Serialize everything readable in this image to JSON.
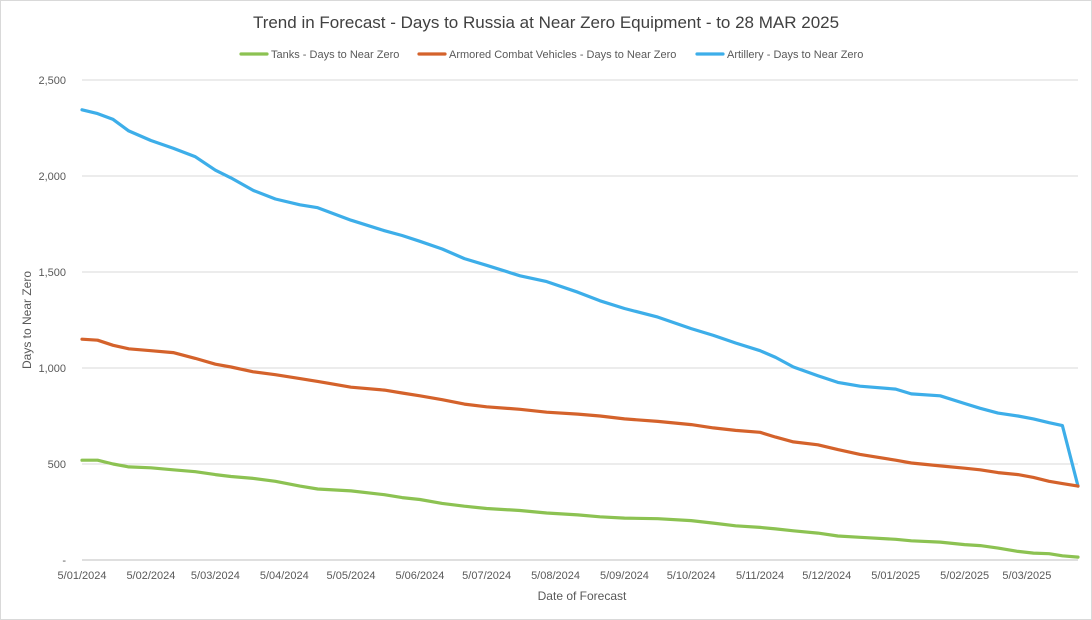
{
  "chart_data": {
    "type": "line",
    "title": "Trend in Forecast - Days to Russia at Near Zero Equipment - to 28 MAR 2025",
    "xlabel": "Date of Forecast",
    "ylabel": "Days to Near Zero",
    "ylim": [
      0,
      2500
    ],
    "yticks": [
      0,
      500,
      1000,
      1500,
      2000,
      2500
    ],
    "ytick_labels": [
      "-",
      "500",
      "1,000",
      "1,500",
      "2,000",
      "2,500"
    ],
    "xlim": [
      "2024-01-05",
      "2025-03-28"
    ],
    "xtick_labels": [
      "5/01/2024",
      "5/02/2024",
      "5/03/2024",
      "5/04/2024",
      "5/05/2024",
      "5/06/2024",
      "5/07/2024",
      "5/08/2024",
      "5/09/2024",
      "5/10/2024",
      "5/11/2024",
      "5/12/2024",
      "5/01/2025",
      "5/02/2025",
      "5/03/2025"
    ],
    "xtick_dates": [
      "2024-01-05",
      "2024-02-05",
      "2024-03-05",
      "2024-04-05",
      "2024-05-05",
      "2024-06-05",
      "2024-07-05",
      "2024-08-05",
      "2024-09-05",
      "2024-10-05",
      "2024-11-05",
      "2024-12-05",
      "2025-01-05",
      "2025-02-05",
      "2025-03-05"
    ],
    "grid": true,
    "legend_position": "top",
    "series": [
      {
        "name": "Tanks - Days to Near Zero",
        "color": "#8cc252",
        "points": [
          [
            "2024-01-05",
            520
          ],
          [
            "2024-01-12",
            520
          ],
          [
            "2024-01-19",
            500
          ],
          [
            "2024-01-26",
            485
          ],
          [
            "2024-02-05",
            480
          ],
          [
            "2024-02-15",
            470
          ],
          [
            "2024-02-25",
            460
          ],
          [
            "2024-03-05",
            445
          ],
          [
            "2024-03-12",
            435
          ],
          [
            "2024-03-22",
            425
          ],
          [
            "2024-04-01",
            410
          ],
          [
            "2024-04-12",
            385
          ],
          [
            "2024-04-20",
            370
          ],
          [
            "2024-05-05",
            360
          ],
          [
            "2024-05-20",
            340
          ],
          [
            "2024-05-28",
            325
          ],
          [
            "2024-06-05",
            315
          ],
          [
            "2024-06-15",
            295
          ],
          [
            "2024-06-25",
            280
          ],
          [
            "2024-07-05",
            268
          ],
          [
            "2024-07-20",
            258
          ],
          [
            "2024-08-01",
            245
          ],
          [
            "2024-08-15",
            235
          ],
          [
            "2024-08-25",
            225
          ],
          [
            "2024-09-05",
            218
          ],
          [
            "2024-09-20",
            215
          ],
          [
            "2024-10-05",
            205
          ],
          [
            "2024-10-15",
            192
          ],
          [
            "2024-10-25",
            178
          ],
          [
            "2024-11-05",
            170
          ],
          [
            "2024-11-12",
            162
          ],
          [
            "2024-11-20",
            152
          ],
          [
            "2024-12-01",
            140
          ],
          [
            "2024-12-10",
            125
          ],
          [
            "2024-12-20",
            118
          ],
          [
            "2025-01-05",
            108
          ],
          [
            "2025-01-12",
            100
          ],
          [
            "2025-01-25",
            93
          ],
          [
            "2025-02-05",
            80
          ],
          [
            "2025-02-12",
            75
          ],
          [
            "2025-02-20",
            62
          ],
          [
            "2025-03-01",
            45
          ],
          [
            "2025-03-08",
            36
          ],
          [
            "2025-03-15",
            33
          ],
          [
            "2025-03-21",
            22
          ],
          [
            "2025-03-28",
            15
          ]
        ]
      },
      {
        "name": "Armored Combat Vehicles - Days to Near Zero",
        "color": "#d4622b",
        "points": [
          [
            "2024-01-05",
            1150
          ],
          [
            "2024-01-12",
            1145
          ],
          [
            "2024-01-19",
            1118
          ],
          [
            "2024-01-26",
            1100
          ],
          [
            "2024-02-05",
            1090
          ],
          [
            "2024-02-15",
            1080
          ],
          [
            "2024-02-25",
            1050
          ],
          [
            "2024-03-05",
            1020
          ],
          [
            "2024-03-12",
            1005
          ],
          [
            "2024-03-22",
            980
          ],
          [
            "2024-04-01",
            965
          ],
          [
            "2024-04-12",
            945
          ],
          [
            "2024-04-20",
            930
          ],
          [
            "2024-05-05",
            900
          ],
          [
            "2024-05-20",
            885
          ],
          [
            "2024-05-28",
            870
          ],
          [
            "2024-06-05",
            855
          ],
          [
            "2024-06-15",
            835
          ],
          [
            "2024-06-25",
            812
          ],
          [
            "2024-07-05",
            798
          ],
          [
            "2024-07-20",
            785
          ],
          [
            "2024-08-01",
            770
          ],
          [
            "2024-08-15",
            760
          ],
          [
            "2024-08-25",
            750
          ],
          [
            "2024-09-05",
            735
          ],
          [
            "2024-09-20",
            722
          ],
          [
            "2024-10-05",
            705
          ],
          [
            "2024-10-15",
            688
          ],
          [
            "2024-10-25",
            675
          ],
          [
            "2024-11-05",
            665
          ],
          [
            "2024-11-12",
            640
          ],
          [
            "2024-11-20",
            615
          ],
          [
            "2024-12-01",
            600
          ],
          [
            "2024-12-10",
            575
          ],
          [
            "2024-12-20",
            550
          ],
          [
            "2025-01-05",
            520
          ],
          [
            "2025-01-12",
            505
          ],
          [
            "2025-01-25",
            490
          ],
          [
            "2025-02-05",
            478
          ],
          [
            "2025-02-12",
            470
          ],
          [
            "2025-02-20",
            455
          ],
          [
            "2025-03-01",
            445
          ],
          [
            "2025-03-08",
            430
          ],
          [
            "2025-03-15",
            410
          ],
          [
            "2025-03-21",
            398
          ],
          [
            "2025-03-28",
            385
          ]
        ]
      },
      {
        "name": "Artillery - Days to Near Zero",
        "color": "#3daee9",
        "points": [
          [
            "2024-01-05",
            2345
          ],
          [
            "2024-01-12",
            2325
          ],
          [
            "2024-01-19",
            2295
          ],
          [
            "2024-01-26",
            2235
          ],
          [
            "2024-02-05",
            2185
          ],
          [
            "2024-02-15",
            2145
          ],
          [
            "2024-02-25",
            2100
          ],
          [
            "2024-03-05",
            2030
          ],
          [
            "2024-03-12",
            1990
          ],
          [
            "2024-03-22",
            1925
          ],
          [
            "2024-04-01",
            1880
          ],
          [
            "2024-04-12",
            1850
          ],
          [
            "2024-04-20",
            1835
          ],
          [
            "2024-05-05",
            1770
          ],
          [
            "2024-05-20",
            1715
          ],
          [
            "2024-05-28",
            1690
          ],
          [
            "2024-06-05",
            1660
          ],
          [
            "2024-06-15",
            1620
          ],
          [
            "2024-06-25",
            1570
          ],
          [
            "2024-07-05",
            1535
          ],
          [
            "2024-07-20",
            1480
          ],
          [
            "2024-08-01",
            1450
          ],
          [
            "2024-08-15",
            1395
          ],
          [
            "2024-08-25",
            1350
          ],
          [
            "2024-09-05",
            1310
          ],
          [
            "2024-09-20",
            1265
          ],
          [
            "2024-10-05",
            1205
          ],
          [
            "2024-10-15",
            1170
          ],
          [
            "2024-10-25",
            1130
          ],
          [
            "2024-11-05",
            1090
          ],
          [
            "2024-11-12",
            1055
          ],
          [
            "2024-11-20",
            1005
          ],
          [
            "2024-12-01",
            960
          ],
          [
            "2024-12-10",
            925
          ],
          [
            "2024-12-20",
            905
          ],
          [
            "2025-01-05",
            890
          ],
          [
            "2025-01-12",
            865
          ],
          [
            "2025-01-25",
            855
          ],
          [
            "2025-02-05",
            815
          ],
          [
            "2025-02-12",
            790
          ],
          [
            "2025-02-20",
            765
          ],
          [
            "2025-03-01",
            750
          ],
          [
            "2025-03-08",
            735
          ],
          [
            "2025-03-15",
            715
          ],
          [
            "2025-03-21",
            700
          ],
          [
            "2025-03-28",
            385
          ]
        ]
      }
    ]
  }
}
